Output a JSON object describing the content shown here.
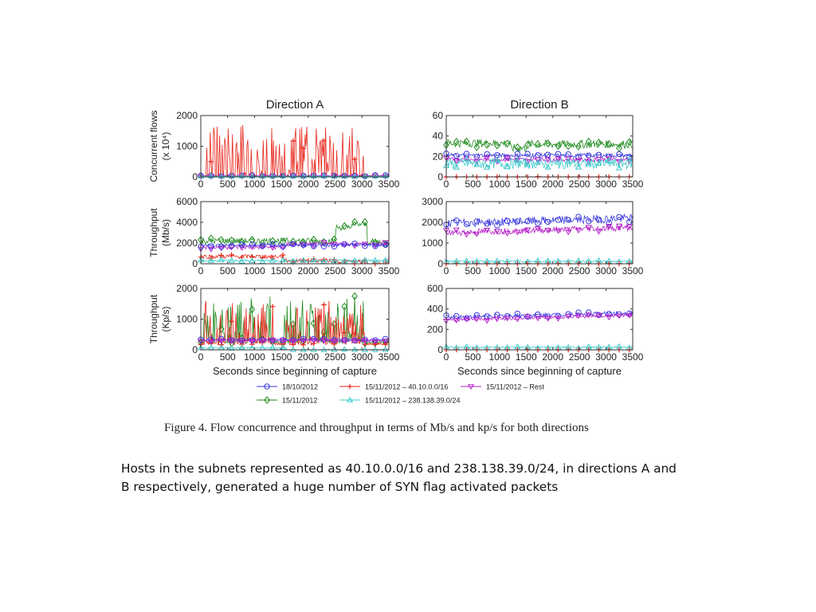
{
  "figure_caption": "Figure 4.   Flow concurrence and throughput in terms of Mb/s and kp/s for both directions",
  "slide_text": {
    "line1": "Hosts in the subnets represented as 40.10.0.0/16 and 238.138.39.0/24, in directions A and",
    "line2": "B respectively, generated a huge number of SYN flag activated packets"
  },
  "chart_data": {
    "type": "line",
    "column_titles": [
      "Direction A",
      "Direction B"
    ],
    "xlabel": "Seconds since beginning of capture",
    "x_ticks": [
      0,
      500,
      1000,
      1500,
      2000,
      2500,
      3000,
      3500
    ],
    "xlim": [
      0,
      3500
    ],
    "series_styles": [
      {
        "name": "18/10/2012",
        "color": "#3a3adf",
        "marker": "circle"
      },
      {
        "name": "15/11/2012 – 40.10.0.0/16",
        "color": "#e8251a",
        "marker": "plus"
      },
      {
        "name": "15/11/2012 – Rest",
        "color": "#b41ec8",
        "marker": "triangle-down"
      },
      {
        "name": "15/11/2012",
        "color": "#1e8a1e",
        "marker": "diamond"
      },
      {
        "name": "15/11/2012 – 238.138.39.0/24",
        "color": "#38c8c8",
        "marker": "triangle-up"
      }
    ],
    "legend_layout": [
      [
        0,
        1,
        2
      ],
      [
        3,
        4
      ]
    ],
    "legend_placement": "bottom",
    "panels": [
      {
        "id": "A-flows",
        "col": 0,
        "row": 0,
        "ylabel": [
          "Concurrent flows",
          "(x 10⁴)"
        ],
        "ylim": [
          0,
          2000
        ],
        "y_ticks": [
          0,
          1000,
          2000
        ],
        "series": [
          {
            "style": 0,
            "base": 40,
            "noise": 20
          },
          {
            "style": 1,
            "base": 30,
            "noise": 15,
            "spikes": [
              [
                50,
                1550,
                1700
              ],
              [
                1550,
                3050,
                1650
              ]
            ]
          },
          {
            "style": 2,
            "base": 25,
            "noise": 10
          },
          {
            "style": 4,
            "base": 20,
            "noise": 8
          }
        ]
      },
      {
        "id": "B-flows",
        "col": 1,
        "row": 0,
        "ylabel": [],
        "ylim": [
          0,
          60
        ],
        "y_ticks": [
          0,
          20,
          40,
          60
        ],
        "series": [
          {
            "style": 3,
            "base": 32,
            "noise": 4,
            "segments": [
              [
                0,
                1200,
                33
              ],
              [
                1200,
                1500,
                28
              ],
              [
                1500,
                3500,
                32
              ]
            ]
          },
          {
            "style": 0,
            "base": 21,
            "noise": 2
          },
          {
            "style": 2,
            "base": 17,
            "noise": 2
          },
          {
            "style": 4,
            "base": 13,
            "noise": 5
          },
          {
            "style": 1,
            "base": 0,
            "noise": 0.3
          }
        ]
      },
      {
        "id": "A-mbps",
        "col": 0,
        "row": 1,
        "ylabel": [
          "Throughput",
          "(Mb/s)"
        ],
        "ylim": [
          0,
          6000
        ],
        "y_ticks": [
          0,
          2000,
          4000,
          6000
        ],
        "series": [
          {
            "style": 3,
            "base": 2200,
            "noise": 300,
            "segments": [
              [
                0,
                2500,
                2200
              ],
              [
                2500,
                2800,
                3500
              ],
              [
                2800,
                3100,
                3800
              ],
              [
                3100,
                3500,
                2100
              ]
            ]
          },
          {
            "style": 2,
            "base": 1700,
            "noise": 200,
            "segments": [
              [
                0,
                1600,
                1600
              ],
              [
                1600,
                3500,
                1900
              ]
            ]
          },
          {
            "style": 0,
            "base": 1800,
            "noise": 150
          },
          {
            "style": 1,
            "base": 700,
            "noise": 200,
            "segments": [
              [
                0,
                1550,
                700
              ],
              [
                1550,
                2500,
                300
              ],
              [
                2500,
                3100,
                200
              ],
              [
                3100,
                3500,
                0
              ]
            ]
          },
          {
            "style": 4,
            "base": 300,
            "noise": 100
          }
        ]
      },
      {
        "id": "B-mbps",
        "col": 1,
        "row": 1,
        "ylabel": [],
        "ylim": [
          0,
          3000
        ],
        "y_ticks": [
          0,
          1000,
          2000,
          3000
        ],
        "series": [
          {
            "style": 0,
            "base": 1950,
            "noise": 200,
            "segments": [
              [
                0,
                3500,
                1950
              ]
            ],
            "trend": 250
          },
          {
            "style": 2,
            "base": 1500,
            "noise": 150,
            "trend": 250
          },
          {
            "style": 4,
            "base": 120,
            "noise": 40
          },
          {
            "style": 1,
            "base": 0,
            "noise": 5
          }
        ]
      },
      {
        "id": "A-kps",
        "col": 0,
        "row": 2,
        "ylabel": [
          "Throughput",
          "(Kp/s)"
        ],
        "ylim": [
          0,
          2000
        ],
        "y_ticks": [
          0,
          1000,
          2000
        ],
        "series": [
          {
            "style": 3,
            "base": 250,
            "noise": 40,
            "spikes": [
              [
                50,
                1350,
                1750
              ],
              [
                1550,
                3050,
                1750
              ]
            ]
          },
          {
            "style": 1,
            "base": 200,
            "noise": 40,
            "spikes": [
              [
                50,
                1350,
                1600
              ],
              [
                1550,
                3050,
                1600
              ]
            ]
          },
          {
            "style": 0,
            "base": 330,
            "noise": 30
          },
          {
            "style": 2,
            "base": 300,
            "noise": 30
          },
          {
            "style": 4,
            "base": 60,
            "noise": 20,
            "segments": [
              [
                0,
                1600,
                60
              ],
              [
                1600,
                3500,
                0
              ]
            ]
          }
        ]
      },
      {
        "id": "B-kps",
        "col": 1,
        "row": 2,
        "ylabel": [],
        "ylim": [
          0,
          600
        ],
        "y_ticks": [
          0,
          200,
          400,
          600
        ],
        "series": [
          {
            "style": 0,
            "base": 320,
            "noise": 20,
            "trend": 40
          },
          {
            "style": 2,
            "base": 290,
            "noise": 15,
            "trend": 50
          },
          {
            "style": 4,
            "base": 25,
            "noise": 8
          },
          {
            "style": 1,
            "base": 0,
            "noise": 1
          }
        ]
      }
    ]
  }
}
